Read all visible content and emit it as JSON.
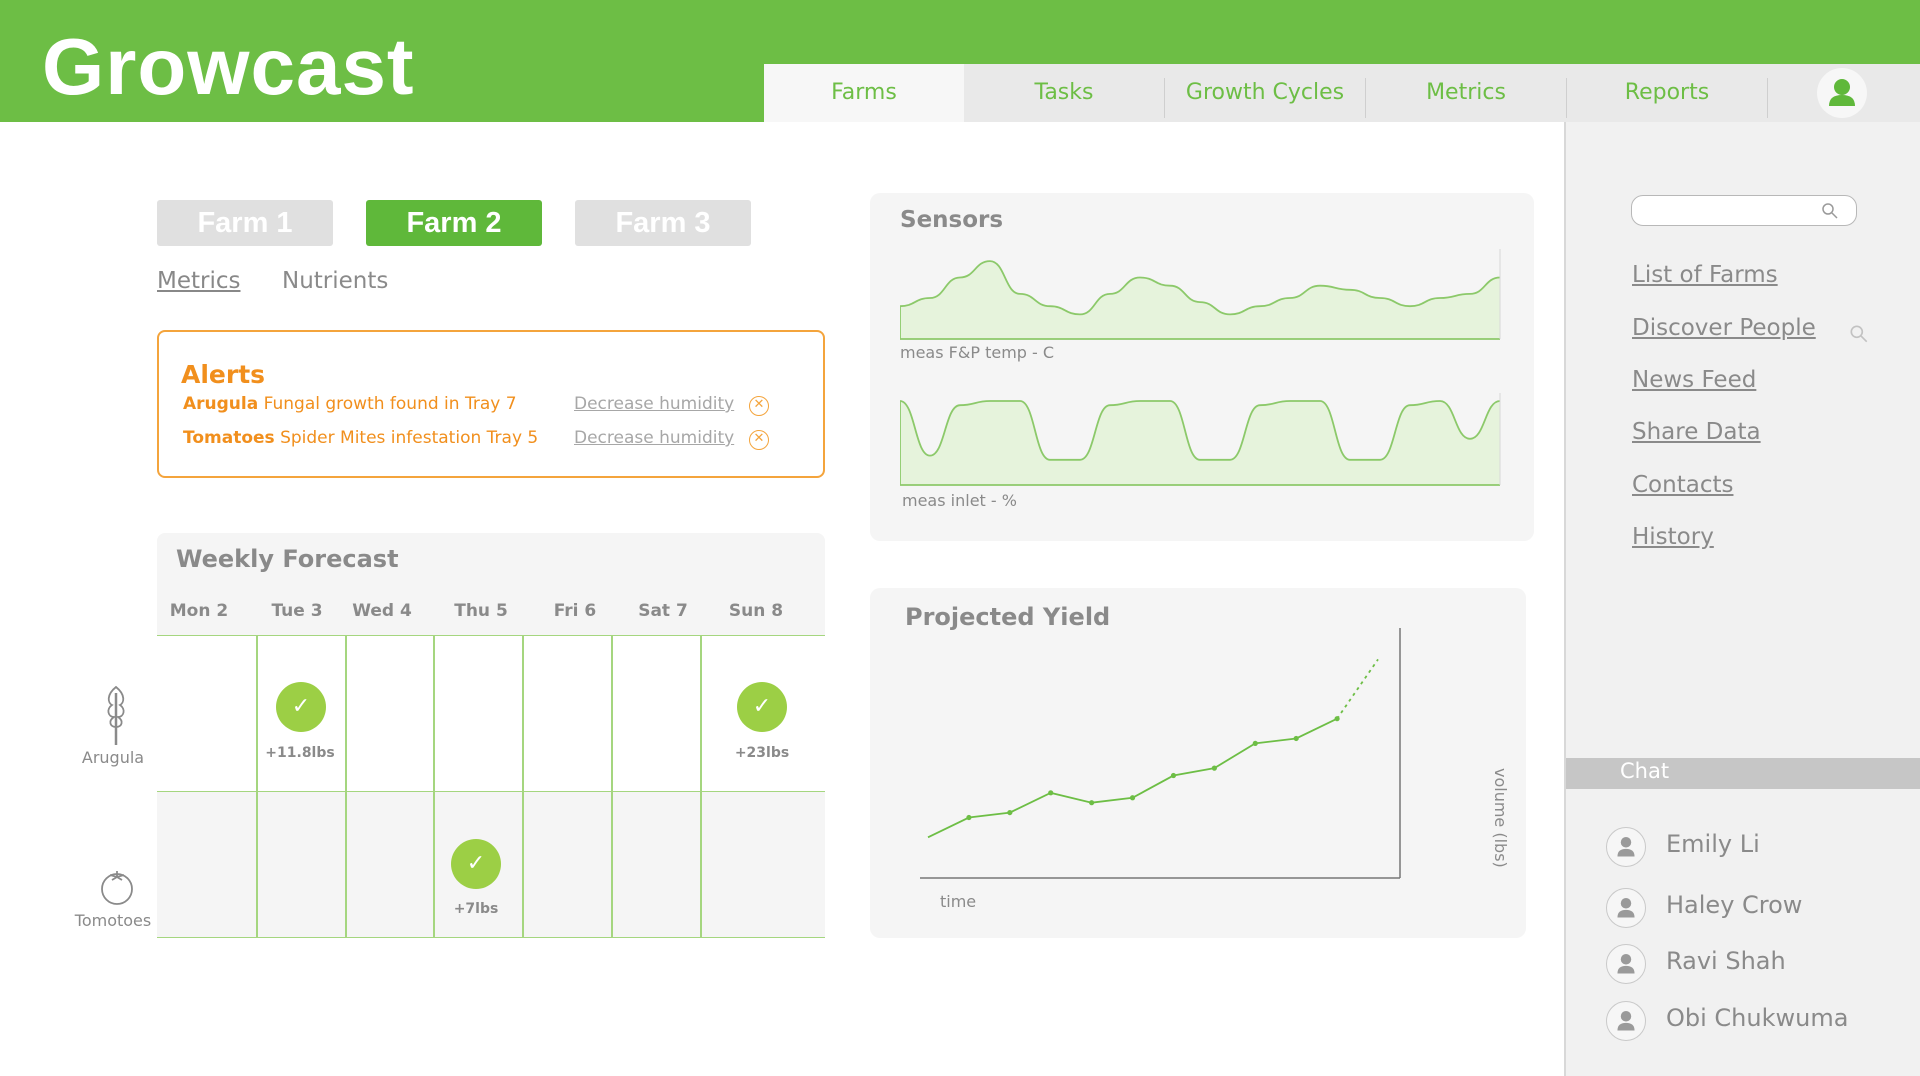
{
  "app": {
    "title": "Growcast"
  },
  "nav": {
    "tabs": [
      "Farms",
      "Tasks",
      "Growth Cycles",
      "Metrics",
      "Reports"
    ],
    "active": "Farms"
  },
  "farms": {
    "buttons": [
      "Farm 1",
      "Farm 2",
      "Farm 3"
    ],
    "active": "Farm 2"
  },
  "subtabs": {
    "items": [
      "Metrics",
      "Nutrients"
    ],
    "active": "Metrics"
  },
  "alerts": {
    "title": "Alerts",
    "items": [
      {
        "crop": "Arugula",
        "message": "Fungal growth found in Tray 7",
        "action": "Decrease humidity"
      },
      {
        "crop": "Tomatoes",
        "message": "Spider Mites infestation Tray 5",
        "action": "Decrease humidity"
      }
    ]
  },
  "forecast": {
    "title": "Weekly Forecast",
    "days": [
      "Mon 2",
      "Tue 3",
      "Wed 4",
      "Thu 5",
      "Fri 6",
      "Sat 7",
      "Sun 8"
    ],
    "crops": [
      "Arugula",
      "Tomotoes"
    ],
    "harvests": [
      {
        "crop": "Arugula",
        "day": "Tue 3",
        "amount": "+11.8lbs"
      },
      {
        "crop": "Arugula",
        "day": "Sun 8",
        "amount": "+23lbs"
      },
      {
        "crop": "Tomotoes",
        "day": "Thu 5",
        "amount": "+7lbs"
      }
    ]
  },
  "sensors": {
    "title": "Sensors",
    "charts": [
      {
        "caption": "meas F&P temp - C"
      },
      {
        "caption": "meas inlet - %"
      }
    ]
  },
  "chart_data": [
    {
      "type": "area",
      "title": "",
      "caption": "meas F&P temp - C",
      "x": [
        0,
        1,
        2,
        3,
        4,
        5,
        6,
        7,
        8,
        9,
        10,
        11,
        12,
        13,
        14,
        15,
        16,
        17,
        18,
        19,
        20
      ],
      "values": [
        0.4,
        0.5,
        0.75,
        0.95,
        0.55,
        0.4,
        0.3,
        0.55,
        0.75,
        0.65,
        0.45,
        0.3,
        0.4,
        0.5,
        0.65,
        0.6,
        0.5,
        0.4,
        0.5,
        0.55,
        0.75
      ],
      "color": "#8cc96a"
    },
    {
      "type": "area",
      "title": "",
      "caption": "meas inlet - %",
      "x": [
        0,
        1,
        2,
        3,
        4,
        5,
        6,
        7,
        8,
        9,
        10,
        11,
        12,
        13,
        14,
        15,
        16,
        17,
        18,
        19,
        20
      ],
      "values": [
        1.0,
        0.35,
        0.95,
        1.0,
        1.0,
        0.3,
        0.3,
        0.95,
        1.0,
        1.0,
        0.3,
        0.3,
        0.95,
        1.0,
        1.0,
        0.3,
        0.3,
        0.95,
        1.0,
        0.55,
        1.0
      ],
      "color": "#8cc96a"
    },
    {
      "type": "line",
      "title": "Projected Yield",
      "xlabel": "time",
      "ylabel": "volume (lbs)",
      "series": [
        {
          "style": "solid",
          "x": [
            0,
            1,
            2,
            3,
            4,
            5,
            6,
            7,
            8,
            9,
            10
          ],
          "values": [
            10,
            18,
            20,
            28,
            24,
            26,
            35,
            38,
            48,
            50,
            58
          ]
        },
        {
          "style": "dotted",
          "x": [
            10,
            11
          ],
          "values": [
            58,
            82
          ]
        }
      ],
      "color": "#6dbe45"
    }
  ],
  "projected_yield": {
    "title": "Projected Yield",
    "xlabel": "time",
    "ylabel": "volume (lbs)"
  },
  "sidebar": {
    "search_placeholder": "",
    "links": [
      "List of Farms",
      "Discover People",
      "News Feed",
      "Share Data",
      "Contacts",
      "History"
    ],
    "chat": {
      "title": "Chat",
      "people": [
        "Emily Li",
        "Haley Crow",
        "Ravi Shah",
        "Obi Chukwuma"
      ]
    }
  },
  "colors": {
    "brand": "#6dbe45",
    "alert": "#f18f1d",
    "check": "#9ccf45"
  }
}
